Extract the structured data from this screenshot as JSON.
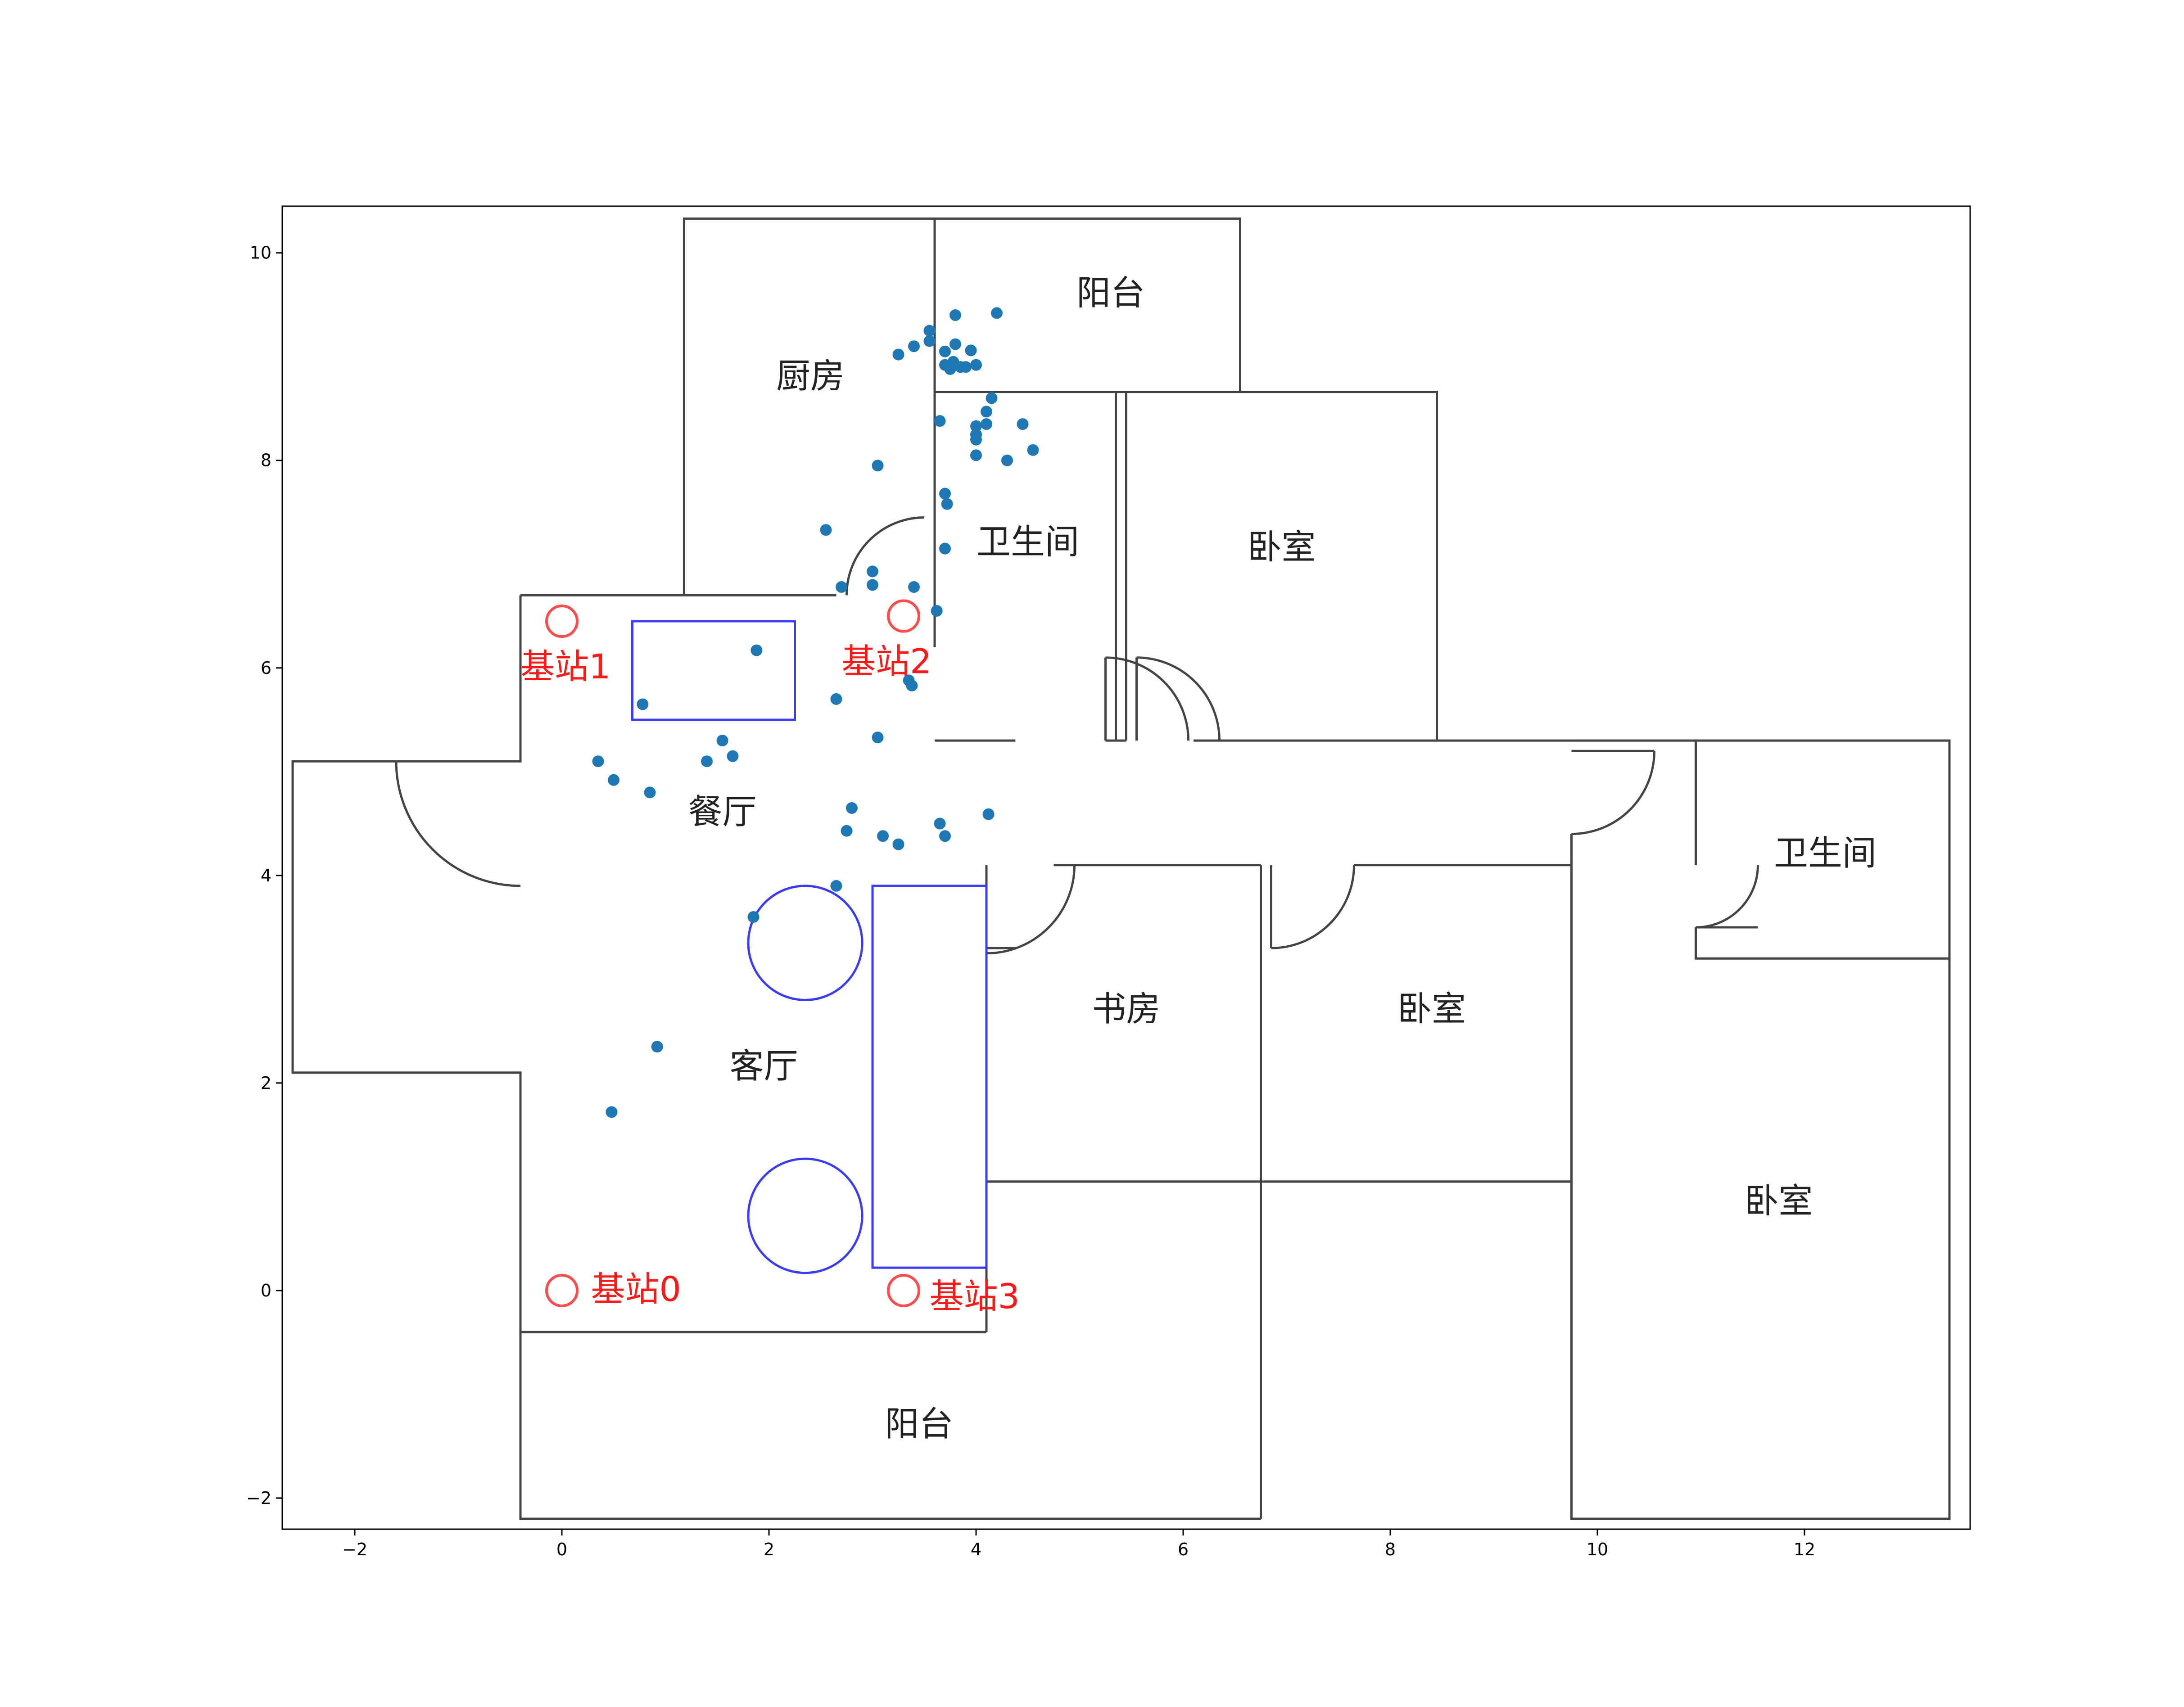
{
  "chart_data": {
    "type": "scatter",
    "xlim": [
      -2.7,
      13.6
    ],
    "ylim": [
      -2.3,
      10.45
    ],
    "x_ticks": [
      {
        "value": -2,
        "label": "−2"
      },
      {
        "value": 0,
        "label": "0"
      },
      {
        "value": 2,
        "label": "2"
      },
      {
        "value": 4,
        "label": "4"
      },
      {
        "value": 6,
        "label": "6"
      },
      {
        "value": 8,
        "label": "8"
      },
      {
        "value": 10,
        "label": "10"
      },
      {
        "value": 12,
        "label": "12"
      }
    ],
    "y_ticks": [
      {
        "value": -2,
        "label": "−2"
      },
      {
        "value": 0,
        "label": "0"
      },
      {
        "value": 2,
        "label": "2"
      },
      {
        "value": 4,
        "label": "4"
      },
      {
        "value": 6,
        "label": "6"
      },
      {
        "value": 8,
        "label": "8"
      },
      {
        "value": 10,
        "label": "10"
      }
    ],
    "grid": false,
    "point_color": "#1f77b4",
    "points": [
      [
        3.8,
        9.4
      ],
      [
        4.2,
        9.42
      ],
      [
        3.55,
        9.25
      ],
      [
        3.55,
        9.15
      ],
      [
        3.4,
        9.1
      ],
      [
        3.25,
        9.02
      ],
      [
        3.8,
        9.12
      ],
      [
        3.7,
        9.05
      ],
      [
        3.95,
        9.06
      ],
      [
        3.7,
        8.92
      ],
      [
        3.78,
        8.95
      ],
      [
        3.85,
        8.9
      ],
      [
        3.75,
        8.88
      ],
      [
        3.9,
        8.9
      ],
      [
        4.0,
        8.92
      ],
      [
        4.15,
        8.6
      ],
      [
        4.1,
        8.47
      ],
      [
        3.65,
        8.38
      ],
      [
        4.0,
        8.33
      ],
      [
        4.1,
        8.35
      ],
      [
        4.45,
        8.35
      ],
      [
        4.0,
        8.25
      ],
      [
        4.0,
        8.2
      ],
      [
        4.55,
        8.1
      ],
      [
        4.0,
        8.05
      ],
      [
        4.3,
        8.0
      ],
      [
        3.05,
        7.95
      ],
      [
        3.7,
        7.68
      ],
      [
        3.72,
        7.58
      ],
      [
        2.55,
        7.33
      ],
      [
        3.7,
        7.15
      ],
      [
        3.0,
        6.93
      ],
      [
        2.7,
        6.78
      ],
      [
        3.0,
        6.8
      ],
      [
        3.4,
        6.78
      ],
      [
        3.62,
        6.55
      ],
      [
        1.88,
        6.17
      ],
      [
        3.35,
        5.88
      ],
      [
        3.38,
        5.83
      ],
      [
        2.65,
        5.7
      ],
      [
        0.78,
        5.65
      ],
      [
        3.05,
        5.33
      ],
      [
        1.55,
        5.3
      ],
      [
        1.65,
        5.15
      ],
      [
        1.4,
        5.1
      ],
      [
        0.35,
        5.1
      ],
      [
        0.5,
        4.92
      ],
      [
        0.85,
        4.8
      ],
      [
        2.8,
        4.65
      ],
      [
        2.75,
        4.43
      ],
      [
        4.12,
        4.59
      ],
      [
        3.65,
        4.5
      ],
      [
        3.1,
        4.38
      ],
      [
        3.7,
        4.38
      ],
      [
        3.25,
        4.3
      ],
      [
        2.65,
        3.9
      ],
      [
        1.85,
        3.6
      ],
      [
        0.92,
        2.35
      ],
      [
        0.48,
        1.72
      ]
    ],
    "annotations": {
      "rooms": [
        {
          "text": "厨房",
          "x": 2.4,
          "y": 8.7
        },
        {
          "text": "阳台",
          "x": 5.3,
          "y": 9.5
        },
        {
          "text": "卫生间",
          "x": 4.5,
          "y": 7.1
        },
        {
          "text": "卧室",
          "x": 6.95,
          "y": 7.05
        },
        {
          "text": "餐厅",
          "x": 1.55,
          "y": 4.5
        },
        {
          "text": "客厅",
          "x": 1.95,
          "y": 2.05
        },
        {
          "text": "书房",
          "x": 5.45,
          "y": 2.6
        },
        {
          "text": "卧室",
          "x": 8.4,
          "y": 2.6
        },
        {
          "text": "卫生间",
          "x": 12.2,
          "y": 4.1
        },
        {
          "text": "卧室",
          "x": 11.75,
          "y": 0.75
        },
        {
          "text": "阳台",
          "x": 3.45,
          "y": -1.4
        }
      ],
      "stations": [
        {
          "text": "基站0",
          "x": 0.0,
          "y": 0.0,
          "label_x": 0.28,
          "label_y": -0.1
        },
        {
          "text": "基站1",
          "x": 0.0,
          "y": 6.45,
          "label_x": -0.4,
          "label_y": 5.9
        },
        {
          "text": "基站2",
          "x": 3.3,
          "y": 6.5,
          "label_x": 2.7,
          "label_y": 5.95
        },
        {
          "text": "基站3",
          "x": 3.3,
          "y": 0.0,
          "label_x": 3.55,
          "label_y": -0.17
        }
      ]
    }
  }
}
